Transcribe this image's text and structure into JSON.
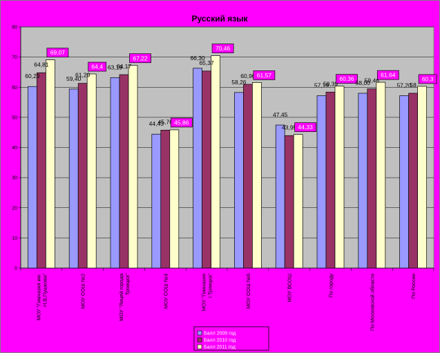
{
  "chart_data": {
    "type": "bar",
    "title": "Русский язык",
    "ylim": [
      0,
      80
    ],
    "yticks": [
      "0",
      "10",
      "20",
      "30",
      "40",
      "50",
      "60",
      "70",
      "80"
    ],
    "grid": true,
    "legend_position": "bottom",
    "categories": [
      "МОУ \"Гимназия им. Н.В.Пушкова\"",
      "МОУ СОШ №2",
      "МОУ \"Лицей города Троицка\"",
      "МОУ СОШ №4",
      "МОУ \"Гимназия г.Троицка\"",
      "МОУ СОШ №6",
      "МОУ ВСОШ",
      "По городу",
      "По Московской области",
      "По России"
    ],
    "series": [
      {
        "name": "Балл 2009 год",
        "color": "#9999ff",
        "values": [
          60.23,
          59.4,
          63.19,
          44.43,
          66.3,
          58.26,
          47.45,
          57.19,
          58.0,
          57.2
        ],
        "labels": [
          "60,23",
          "59,40",
          "63,19",
          "44,43",
          "66,30",
          "58,26",
          "47,45",
          "57,19",
          "58,00",
          "57,20"
        ]
      },
      {
        "name": "Балл 2010 год",
        "color": "#993366",
        "values": [
          64.81,
          61.29,
          64.17,
          45.76,
          65.37,
          60.96,
          43.95,
          58.39,
          59.46,
          58.0
        ],
        "labels": [
          "64,81",
          "61,29",
          "64,17",
          "45,76",
          "65,37",
          "60,96",
          "43,95",
          "58,39",
          "59,46",
          "58"
        ]
      },
      {
        "name": "Балл 2011 год",
        "color": "#ffffcc",
        "values": [
          69.07,
          64.4,
          67.22,
          45.86,
          70.46,
          61.57,
          44.33,
          60.36,
          61.64,
          60.3
        ],
        "labels": [
          "69,07",
          "64,4",
          "67,22",
          "45,86",
          "70,46",
          "61,57",
          "44,33",
          "60,36",
          "61,64",
          "60,3"
        ]
      }
    ]
  },
  "colors": {
    "background": "#ff00ff",
    "plot_area": "#c0c0c0",
    "label_box": "#ff00ff"
  }
}
